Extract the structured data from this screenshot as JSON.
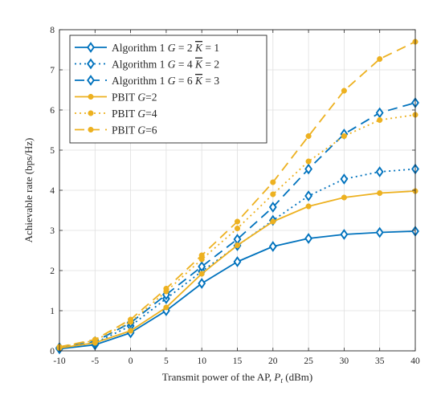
{
  "chart_data": {
    "type": "line",
    "xlabel": "Transmit power of the AP, P_t (dBm)",
    "xlabel_parts": {
      "prefix": "Transmit power of the AP, ",
      "symbol": "P",
      "sub": "t",
      "suffix": " (dBm)"
    },
    "ylabel": "Achievable rate (bps/Hz)",
    "x": [
      -10,
      -5,
      0,
      5,
      10,
      15,
      20,
      25,
      30,
      35,
      40
    ],
    "x_tick_labels": [
      "-10",
      "-5",
      "0",
      "5",
      "10",
      "15",
      "20",
      "25",
      "30",
      "35",
      "40"
    ],
    "xlim": [
      -10,
      40
    ],
    "ylim": [
      0,
      8
    ],
    "y_ticks": [
      0,
      1,
      2,
      3,
      4,
      5,
      6,
      7,
      8
    ],
    "y_tick_labels": [
      "0",
      "1",
      "2",
      "3",
      "4",
      "5",
      "6",
      "7",
      "8"
    ],
    "grid": true,
    "legend_position": "top-left",
    "series": [
      {
        "name": "Algorithm 1 G = 2 K̄ = 1",
        "label_parts": {
          "text": "Algorithm 1 ",
          "G": "G",
          "eq1": " = 2 ",
          "K": "K",
          "eq2": " = 1"
        },
        "color": "#0072BD",
        "dash": "solid",
        "marker": "diamond",
        "values": [
          0.05,
          0.15,
          0.45,
          1.0,
          1.68,
          2.22,
          2.6,
          2.8,
          2.9,
          2.95,
          2.98
        ]
      },
      {
        "name": "Algorithm 1 G = 4 K̄ = 2",
        "label_parts": {
          "text": "Algorithm 1 ",
          "G": "G",
          "eq1": " = 4 ",
          "K": "K",
          "eq2": " = 2"
        },
        "color": "#0072BD",
        "dash": "dotted",
        "marker": "diamond",
        "values": [
          0.07,
          0.2,
          0.62,
          1.3,
          1.98,
          2.62,
          3.25,
          3.86,
          4.28,
          4.46,
          4.53
        ]
      },
      {
        "name": "Algorithm 1 G = 6 K̄ = 3",
        "label_parts": {
          "text": "Algorithm 1 ",
          "G": "G",
          "eq1": " = 6 ",
          "K": "K",
          "eq2": " = 3"
        },
        "color": "#0072BD",
        "dash": "dashed",
        "marker": "diamond",
        "values": [
          0.08,
          0.23,
          0.7,
          1.4,
          2.1,
          2.78,
          3.58,
          4.53,
          5.4,
          5.93,
          6.18
        ]
      },
      {
        "name": "PBIT G=2",
        "label_parts": {
          "text": "PBIT ",
          "G": "G",
          "eq1": "=2"
        },
        "color": "#EDB120",
        "dash": "solid",
        "marker": "dot",
        "values": [
          0.07,
          0.2,
          0.5,
          1.08,
          1.92,
          2.63,
          3.22,
          3.6,
          3.82,
          3.93,
          3.98
        ]
      },
      {
        "name": "PBIT G=4",
        "label_parts": {
          "text": "PBIT ",
          "G": "G",
          "eq1": "=4"
        },
        "color": "#EDB120",
        "dash": "dotted",
        "marker": "dot",
        "values": [
          0.09,
          0.26,
          0.72,
          1.48,
          2.28,
          3.05,
          3.9,
          4.72,
          5.35,
          5.75,
          5.88
        ]
      },
      {
        "name": "PBIT G=6",
        "label_parts": {
          "text": "PBIT ",
          "G": "G",
          "eq1": "=6"
        },
        "color": "#EDB120",
        "dash": "dashed",
        "marker": "dot",
        "values": [
          0.1,
          0.28,
          0.78,
          1.55,
          2.38,
          3.22,
          4.2,
          5.35,
          6.48,
          7.27,
          7.7
        ]
      }
    ]
  }
}
